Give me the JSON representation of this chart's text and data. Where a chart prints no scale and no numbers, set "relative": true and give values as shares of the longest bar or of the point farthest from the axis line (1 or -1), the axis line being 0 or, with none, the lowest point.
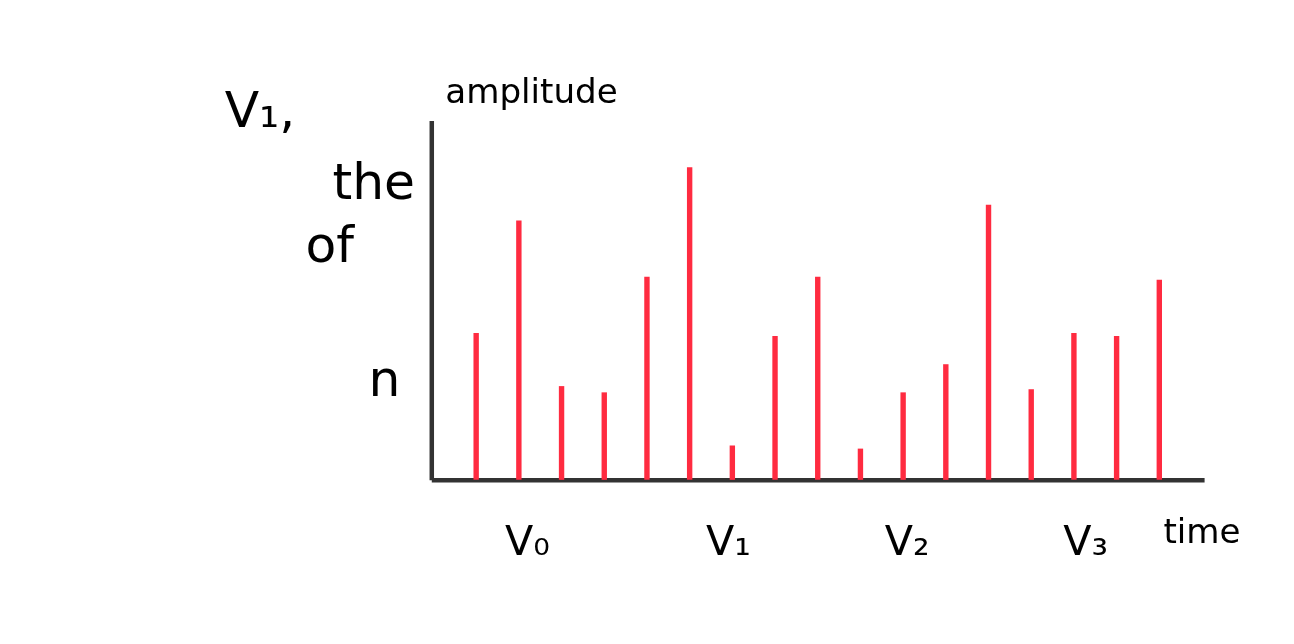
{
  "chart_data": {
    "type": "bar",
    "relative": true,
    "xlabel": "time",
    "ylabel": "amplitude",
    "categories": [
      null,
      null,
      null,
      null,
      null,
      null,
      null,
      null,
      null,
      null,
      null,
      null,
      null,
      null,
      null,
      null,
      null
    ],
    "values": [
      0.47,
      0.83,
      0.3,
      0.28,
      0.65,
      1.0,
      0.11,
      0.46,
      0.65,
      0.1,
      0.28,
      0.37,
      0.88,
      0.29,
      0.47,
      0.46,
      0.64
    ],
    "color": "#ff2b40",
    "grid": false,
    "annotations": [
      "V₁,",
      "the",
      "of",
      "n",
      "V₀",
      "V₁",
      "V₂",
      "V₃"
    ]
  }
}
